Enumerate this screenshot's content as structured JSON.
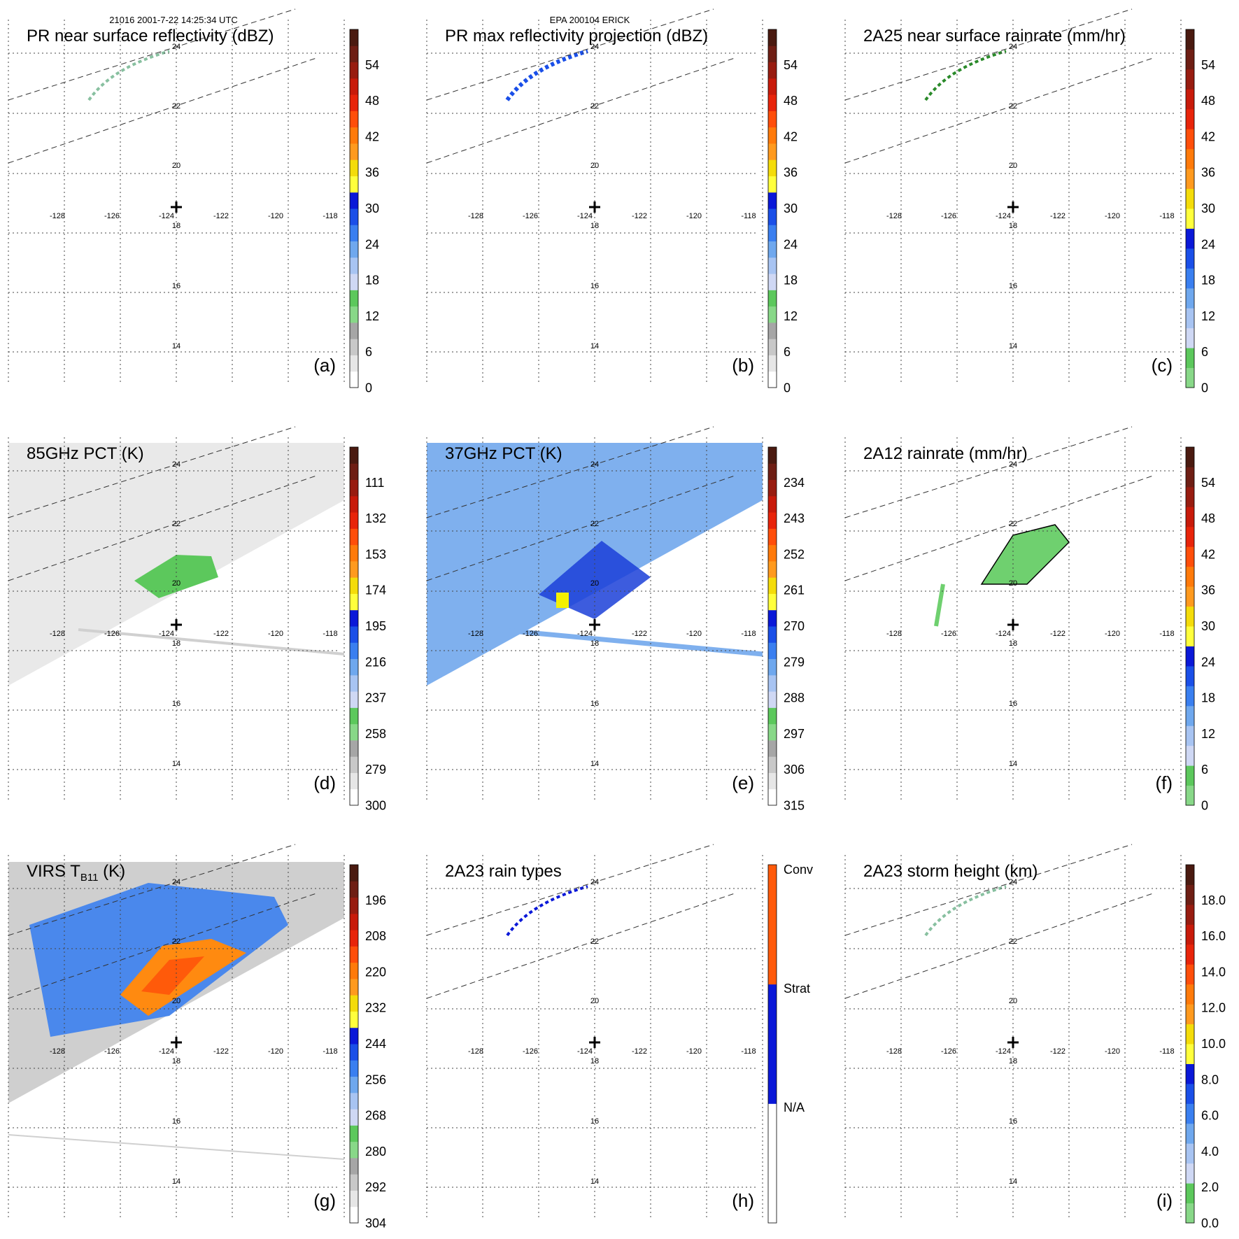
{
  "header": {
    "left": "21016 2001-7-22 14:25:34 UTC",
    "center": "EPA 200104 ERICK"
  },
  "panels": [
    {
      "id": "a",
      "title": "PR near surface reflectivity (dBZ)",
      "label": "(a)",
      "colorbar_ticks": [
        "54",
        "48",
        "42",
        "36",
        "30",
        "24",
        "18",
        "12",
        "6",
        "0"
      ],
      "colorbar_type": "refl"
    },
    {
      "id": "b",
      "title": "PR max reflectivity projection (dBZ)",
      "label": "(b)",
      "colorbar_ticks": [
        "54",
        "48",
        "42",
        "36",
        "30",
        "24",
        "18",
        "12",
        "6",
        "0"
      ],
      "colorbar_type": "refl"
    },
    {
      "id": "c",
      "title": "2A25 near surface rainrate (mm/hr)",
      "label": "(c)",
      "colorbar_ticks": [
        "54",
        "48",
        "42",
        "36",
        "30",
        "24",
        "18",
        "12",
        "6",
        "0"
      ],
      "colorbar_type": "rain"
    },
    {
      "id": "d",
      "title": "85GHz PCT (K)",
      "label": "(d)",
      "colorbar_ticks": [
        "111",
        "132",
        "153",
        "174",
        "195",
        "216",
        "237",
        "258",
        "279",
        "300"
      ],
      "colorbar_type": "refl"
    },
    {
      "id": "e",
      "title": "37GHz PCT (K)",
      "label": "(e)",
      "colorbar_ticks": [
        "234",
        "243",
        "252",
        "261",
        "270",
        "279",
        "288",
        "297",
        "306",
        "315"
      ],
      "colorbar_type": "refl"
    },
    {
      "id": "f",
      "title": "2A12 rainrate (mm/hr)",
      "label": "(f)",
      "colorbar_ticks": [
        "54",
        "48",
        "42",
        "36",
        "30",
        "24",
        "18",
        "12",
        "6",
        "0"
      ],
      "colorbar_type": "rain"
    },
    {
      "id": "g",
      "title_main": "VIRS T",
      "title_sub": "B11",
      "title_end": " (K)",
      "label": "(g)",
      "colorbar_ticks": [
        "196",
        "208",
        "220",
        "232",
        "244",
        "256",
        "268",
        "280",
        "292",
        "304"
      ],
      "colorbar_type": "refl"
    },
    {
      "id": "h",
      "title": "2A23 rain types",
      "label": "(h)",
      "colorbar_ticks": [
        "Conv",
        "Strat",
        "N/A"
      ],
      "colorbar_type": "raintype"
    },
    {
      "id": "i",
      "title": "2A23 storm height (km)",
      "label": "(i)",
      "colorbar_ticks": [
        "18.0",
        "16.0",
        "14.0",
        "12.0",
        "10.0",
        "8.0",
        "6.0",
        "4.0",
        "2.0",
        "0.0"
      ],
      "colorbar_type": "rain"
    }
  ],
  "map": {
    "lon_labels": [
      "-128",
      "-126",
      "-124",
      "-122",
      "-120",
      "-118"
    ],
    "lat_labels": [
      "24",
      "22",
      "20",
      "18",
      "16",
      "14"
    ]
  },
  "colors": {
    "scale_refl": [
      "#ffffff",
      "#e6e6e6",
      "#c8c8c8",
      "#a6a6a6",
      "#88d888",
      "#5cc85c",
      "#cfd8f4",
      "#a8c4f2",
      "#6fa8ee",
      "#3a7ff0",
      "#1a4fe8",
      "#0a18d8",
      "#ffff3c",
      "#f4dc0a",
      "#ff9a1e",
      "#ff7a0a",
      "#ff4e0a",
      "#e8240a",
      "#c81a0a",
      "#981c10",
      "#6e1e14",
      "#4a1a10"
    ],
    "scale_rain": [
      "#88d888",
      "#5cc85c",
      "#cfd8f4",
      "#a8c4f2",
      "#6fa8ee",
      "#3a7ff0",
      "#1a4fe8",
      "#0a18d8",
      "#ffff3c",
      "#f4dc0a",
      "#ff9a1e",
      "#ff7a0a",
      "#ff4e0a",
      "#e8240a",
      "#c81a0a",
      "#981c10",
      "#6e1e14",
      "#4a1a10"
    ],
    "scale_raintype": [
      "#ffffff",
      "#0a18d8",
      "#ff5a0a"
    ]
  }
}
